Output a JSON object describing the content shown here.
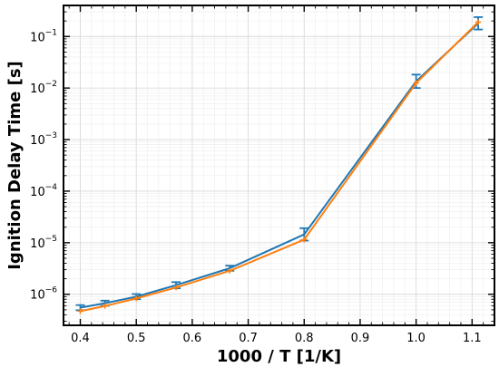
{
  "chart_data": {
    "type": "line",
    "title": "",
    "xlabel": "1000 / T [1/K]",
    "ylabel": "Ignition Delay Time [s]",
    "xlim": [
      0.37,
      1.14
    ],
    "ylim": [
      2.5e-07,
      0.4
    ],
    "yscale": "log",
    "grid": true,
    "legend": "none",
    "x_ticks": [
      0.4,
      0.5,
      0.6,
      0.7,
      0.8,
      0.9,
      1.0,
      1.1
    ],
    "x_tick_labels": [
      "0.4",
      "0.5",
      "0.6",
      "0.7",
      "0.8",
      "0.9",
      "1.0",
      "1.1"
    ],
    "y_ticks": [
      1e-06,
      1e-05,
      0.0001,
      0.001,
      0.01,
      0.1
    ],
    "y_tick_exponents": [
      "-6",
      "-5",
      "-4",
      "-3",
      "-2",
      "-1"
    ],
    "series": [
      {
        "color": "#1f77b4",
        "x": [
          0.4,
          0.444,
          0.5,
          0.571,
          0.667,
          0.8,
          1.0,
          1.111
        ],
        "y": [
          5.5e-07,
          6.7e-07,
          9e-07,
          1.5e-06,
          3.2e-06,
          1.45e-05,
          0.0135,
          0.18
        ],
        "error": [
          0.05,
          0.05,
          0.05,
          0.06,
          0.05,
          0.12,
          0.13,
          0.12
        ],
        "markers": "errorbar"
      },
      {
        "color": "#ff7f0e",
        "x": [
          0.4,
          0.444,
          0.5,
          0.571,
          0.667,
          0.8,
          1.0,
          1.111
        ],
        "y": [
          4.7e-07,
          5.9e-07,
          8.3e-07,
          1.35e-06,
          2.85e-06,
          1.15e-05,
          0.0125,
          0.19
        ],
        "markers": "plus"
      }
    ]
  }
}
